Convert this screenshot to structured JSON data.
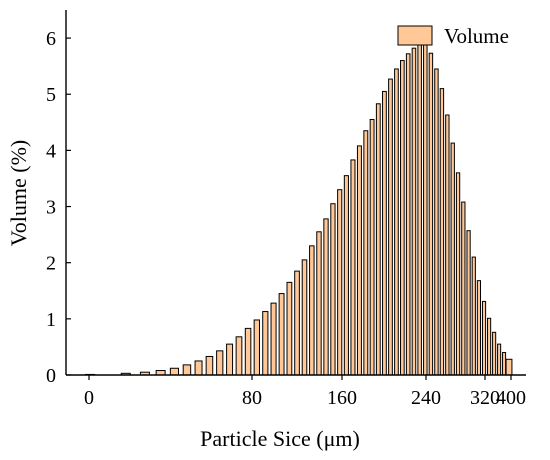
{
  "chart_data": {
    "type": "bar",
    "xlabel": "Particle Sice (μm)",
    "ylabel": "Volume (%)",
    "ylim": [
      0,
      6.5
    ],
    "y_ticks": [
      "0",
      "1",
      "2",
      "3",
      "4",
      "5",
      "6"
    ],
    "x_tick_labels": [
      "0",
      "80",
      "160",
      "240",
      "320",
      "400"
    ],
    "legend": {
      "position": "top-right"
    },
    "bar_color": "#FFC896",
    "series": [
      {
        "name": "Volume",
        "values": [
          0.01,
          0.03,
          0.05,
          0.08,
          0.12,
          0.18,
          0.25,
          0.33,
          0.43,
          0.55,
          0.68,
          0.83,
          0.98,
          1.13,
          1.28,
          1.45,
          1.65,
          1.85,
          2.05,
          2.3,
          2.55,
          2.78,
          3.05,
          3.3,
          3.55,
          3.83,
          4.08,
          4.35,
          4.55,
          4.83,
          5.05,
          5.27,
          5.45,
          5.6,
          5.72,
          5.82,
          5.92,
          5.88,
          5.73,
          5.45,
          5.1,
          4.63,
          4.13,
          3.6,
          3.08,
          2.57,
          2.1,
          1.68,
          1.31,
          1.01,
          0.76,
          0.55,
          0.4,
          0.28
        ]
      }
    ]
  }
}
